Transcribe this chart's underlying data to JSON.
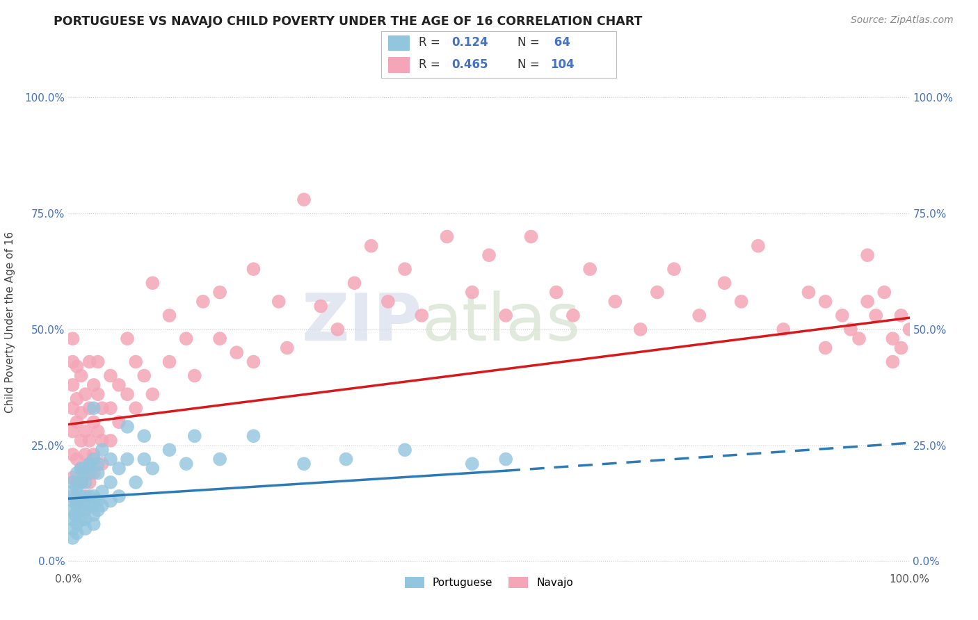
{
  "title": "PORTUGUESE VS NAVAJO CHILD POVERTY UNDER THE AGE OF 16 CORRELATION CHART",
  "source": "Source: ZipAtlas.com",
  "ylabel": "Child Poverty Under the Age of 16",
  "xlim": [
    0.0,
    1.0
  ],
  "ylim": [
    -0.02,
    1.05
  ],
  "ytick_labels": [
    "0.0%",
    "25.0%",
    "50.0%",
    "75.0%",
    "100.0%"
  ],
  "ytick_positions": [
    0.0,
    0.25,
    0.5,
    0.75,
    1.0
  ],
  "blue_color": "#92c5de",
  "pink_color": "#f4a6b8",
  "blue_line_color": "#2c7bb6",
  "pink_line_color": "#d7191c",
  "watermark_zip": "ZIP",
  "watermark_atlas": "atlas",
  "portuguese_scatter": [
    [
      0.005,
      0.13
    ],
    [
      0.005,
      0.11
    ],
    [
      0.005,
      0.09
    ],
    [
      0.005,
      0.07
    ],
    [
      0.005,
      0.05
    ],
    [
      0.005,
      0.17
    ],
    [
      0.005,
      0.15
    ],
    [
      0.008,
      0.1
    ],
    [
      0.01,
      0.14
    ],
    [
      0.01,
      0.12
    ],
    [
      0.01,
      0.08
    ],
    [
      0.01,
      0.06
    ],
    [
      0.01,
      0.19
    ],
    [
      0.01,
      0.16
    ],
    [
      0.01,
      0.13
    ],
    [
      0.015,
      0.14
    ],
    [
      0.015,
      0.11
    ],
    [
      0.015,
      0.09
    ],
    [
      0.015,
      0.17
    ],
    [
      0.015,
      0.2
    ],
    [
      0.02,
      0.13
    ],
    [
      0.02,
      0.11
    ],
    [
      0.02,
      0.09
    ],
    [
      0.02,
      0.07
    ],
    [
      0.02,
      0.2
    ],
    [
      0.02,
      0.17
    ],
    [
      0.025,
      0.14
    ],
    [
      0.025,
      0.12
    ],
    [
      0.025,
      0.19
    ],
    [
      0.025,
      0.21
    ],
    [
      0.03,
      0.33
    ],
    [
      0.03,
      0.14
    ],
    [
      0.03,
      0.12
    ],
    [
      0.03,
      0.1
    ],
    [
      0.03,
      0.08
    ],
    [
      0.03,
      0.22
    ],
    [
      0.035,
      0.13
    ],
    [
      0.035,
      0.11
    ],
    [
      0.035,
      0.19
    ],
    [
      0.035,
      0.21
    ],
    [
      0.04,
      0.24
    ],
    [
      0.04,
      0.15
    ],
    [
      0.04,
      0.12
    ],
    [
      0.05,
      0.17
    ],
    [
      0.05,
      0.13
    ],
    [
      0.05,
      0.22
    ],
    [
      0.06,
      0.14
    ],
    [
      0.06,
      0.2
    ],
    [
      0.07,
      0.29
    ],
    [
      0.07,
      0.22
    ],
    [
      0.08,
      0.17
    ],
    [
      0.09,
      0.27
    ],
    [
      0.09,
      0.22
    ],
    [
      0.1,
      0.2
    ],
    [
      0.12,
      0.24
    ],
    [
      0.14,
      0.21
    ],
    [
      0.15,
      0.27
    ],
    [
      0.18,
      0.22
    ],
    [
      0.22,
      0.27
    ],
    [
      0.28,
      0.21
    ],
    [
      0.33,
      0.22
    ],
    [
      0.4,
      0.24
    ],
    [
      0.48,
      0.21
    ],
    [
      0.52,
      0.22
    ]
  ],
  "navajo_scatter": [
    [
      0.005,
      0.28
    ],
    [
      0.005,
      0.33
    ],
    [
      0.005,
      0.38
    ],
    [
      0.005,
      0.23
    ],
    [
      0.005,
      0.43
    ],
    [
      0.005,
      0.18
    ],
    [
      0.005,
      0.14
    ],
    [
      0.005,
      0.48
    ],
    [
      0.01,
      0.35
    ],
    [
      0.01,
      0.3
    ],
    [
      0.01,
      0.22
    ],
    [
      0.01,
      0.17
    ],
    [
      0.01,
      0.42
    ],
    [
      0.01,
      0.13
    ],
    [
      0.015,
      0.32
    ],
    [
      0.015,
      0.26
    ],
    [
      0.015,
      0.2
    ],
    [
      0.015,
      0.17
    ],
    [
      0.015,
      0.4
    ],
    [
      0.02,
      0.28
    ],
    [
      0.02,
      0.36
    ],
    [
      0.02,
      0.23
    ],
    [
      0.02,
      0.19
    ],
    [
      0.02,
      0.14
    ],
    [
      0.025,
      0.33
    ],
    [
      0.025,
      0.26
    ],
    [
      0.025,
      0.43
    ],
    [
      0.025,
      0.21
    ],
    [
      0.025,
      0.17
    ],
    [
      0.03,
      0.38
    ],
    [
      0.03,
      0.3
    ],
    [
      0.03,
      0.23
    ],
    [
      0.03,
      0.19
    ],
    [
      0.035,
      0.36
    ],
    [
      0.035,
      0.28
    ],
    [
      0.035,
      0.43
    ],
    [
      0.04,
      0.33
    ],
    [
      0.04,
      0.26
    ],
    [
      0.04,
      0.21
    ],
    [
      0.05,
      0.4
    ],
    [
      0.05,
      0.33
    ],
    [
      0.05,
      0.26
    ],
    [
      0.06,
      0.38
    ],
    [
      0.06,
      0.3
    ],
    [
      0.07,
      0.36
    ],
    [
      0.07,
      0.48
    ],
    [
      0.08,
      0.43
    ],
    [
      0.08,
      0.33
    ],
    [
      0.09,
      0.4
    ],
    [
      0.1,
      0.6
    ],
    [
      0.1,
      0.36
    ],
    [
      0.12,
      0.53
    ],
    [
      0.12,
      0.43
    ],
    [
      0.14,
      0.48
    ],
    [
      0.15,
      0.4
    ],
    [
      0.16,
      0.56
    ],
    [
      0.18,
      0.48
    ],
    [
      0.18,
      0.58
    ],
    [
      0.2,
      0.45
    ],
    [
      0.22,
      0.63
    ],
    [
      0.22,
      0.43
    ],
    [
      0.25,
      0.56
    ],
    [
      0.26,
      0.46
    ],
    [
      0.28,
      0.78
    ],
    [
      0.3,
      0.55
    ],
    [
      0.32,
      0.5
    ],
    [
      0.34,
      0.6
    ],
    [
      0.36,
      0.68
    ],
    [
      0.38,
      0.56
    ],
    [
      0.4,
      0.63
    ],
    [
      0.42,
      0.53
    ],
    [
      0.45,
      0.7
    ],
    [
      0.48,
      0.58
    ],
    [
      0.5,
      0.66
    ],
    [
      0.52,
      0.53
    ],
    [
      0.55,
      0.7
    ],
    [
      0.58,
      0.58
    ],
    [
      0.6,
      0.53
    ],
    [
      0.62,
      0.63
    ],
    [
      0.65,
      0.56
    ],
    [
      0.68,
      0.5
    ],
    [
      0.7,
      0.58
    ],
    [
      0.72,
      0.63
    ],
    [
      0.75,
      0.53
    ],
    [
      0.78,
      0.6
    ],
    [
      0.8,
      0.56
    ],
    [
      0.82,
      0.68
    ],
    [
      0.85,
      0.5
    ],
    [
      0.88,
      0.58
    ],
    [
      0.9,
      0.56
    ],
    [
      0.9,
      0.46
    ],
    [
      0.92,
      0.53
    ],
    [
      0.93,
      0.5
    ],
    [
      0.94,
      0.48
    ],
    [
      0.95,
      0.66
    ],
    [
      0.95,
      0.56
    ],
    [
      0.96,
      0.53
    ],
    [
      0.97,
      0.58
    ],
    [
      0.98,
      0.48
    ],
    [
      0.98,
      0.43
    ],
    [
      0.99,
      0.53
    ],
    [
      0.99,
      0.46
    ],
    [
      1.0,
      0.5
    ]
  ],
  "portuguese_trendline_solid": [
    [
      0.0,
      0.135
    ],
    [
      0.52,
      0.195
    ]
  ],
  "portuguese_trendline_dashed": [
    [
      0.52,
      0.195
    ],
    [
      1.0,
      0.255
    ]
  ],
  "navajo_trendline": [
    [
      0.0,
      0.295
    ],
    [
      1.0,
      0.525
    ]
  ]
}
